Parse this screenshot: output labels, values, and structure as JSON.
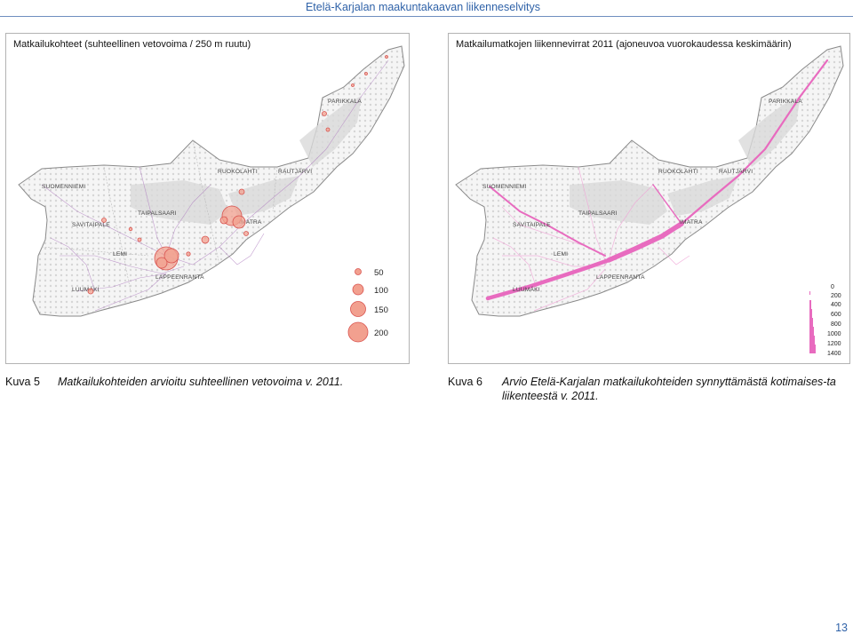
{
  "header": {
    "title": "Etelä-Karjalan maakuntakaavan liikenneselvitys"
  },
  "map_left": {
    "title": "Matkailukohteet (suhteellinen vetovoima / 250 m ruutu)",
    "places": {
      "parikkala": "PARIKKALA",
      "ruokolahti": "RUOKOLAHTI",
      "rautjarvi": "RAUTJÄRVI",
      "suomenniemi": "SUOMENNIEMI",
      "taipalsaari": "TAIPALSAARI",
      "imatra": "IMATRA",
      "savitaipale": "SAVITAIPALE",
      "lemi": "LEMI",
      "lappeenranta": "LAPPEENRANTA",
      "luumaki": "LUUMÄKI"
    },
    "legend": [
      "50",
      "100",
      "150",
      "200"
    ],
    "colors": {
      "circle_fill": "#f2a08f",
      "circle_stroke": "#d9534f",
      "land": "#f4f4f4",
      "forest": "#dcdcdc"
    }
  },
  "map_right": {
    "title": "Matkailumatkojen liikennevirrat 2011 (ajoneuvoa vuorokaudessa keskimäärin)",
    "places": {
      "parikkala": "PARIKKALA",
      "ruokolahti": "RUOKOLAHTI",
      "rautjarvi": "RAUTJÄRVI",
      "suomenniemi": "SUOMENNIEMI",
      "taipalsaari": "TAIPALSAARI",
      "imatra": "IMATRA",
      "savitaipale": "SAVITAIPALE",
      "lemi": "LEMI",
      "lappeenranta": "LAPPEENRANTA",
      "luumaki": "LUUMÄKI"
    },
    "legend": [
      "0",
      "200",
      "400",
      "600",
      "800",
      "1000",
      "1200",
      "1400"
    ],
    "colors": {
      "flow": "#e86bbf",
      "land": "#f4f4f4",
      "forest": "#dcdcdc"
    }
  },
  "captions": {
    "left_label": "Kuva 5",
    "left_text": "Matkailukohteiden arvioitu suhteellinen vetovoima v. 2011.",
    "right_label": "Kuva 6",
    "right_text": "Arvio Etelä-Karjalan matkailukohteiden synnyttämästä kotimaises-ta liikenteestä v. 2011."
  },
  "page_number": "13"
}
